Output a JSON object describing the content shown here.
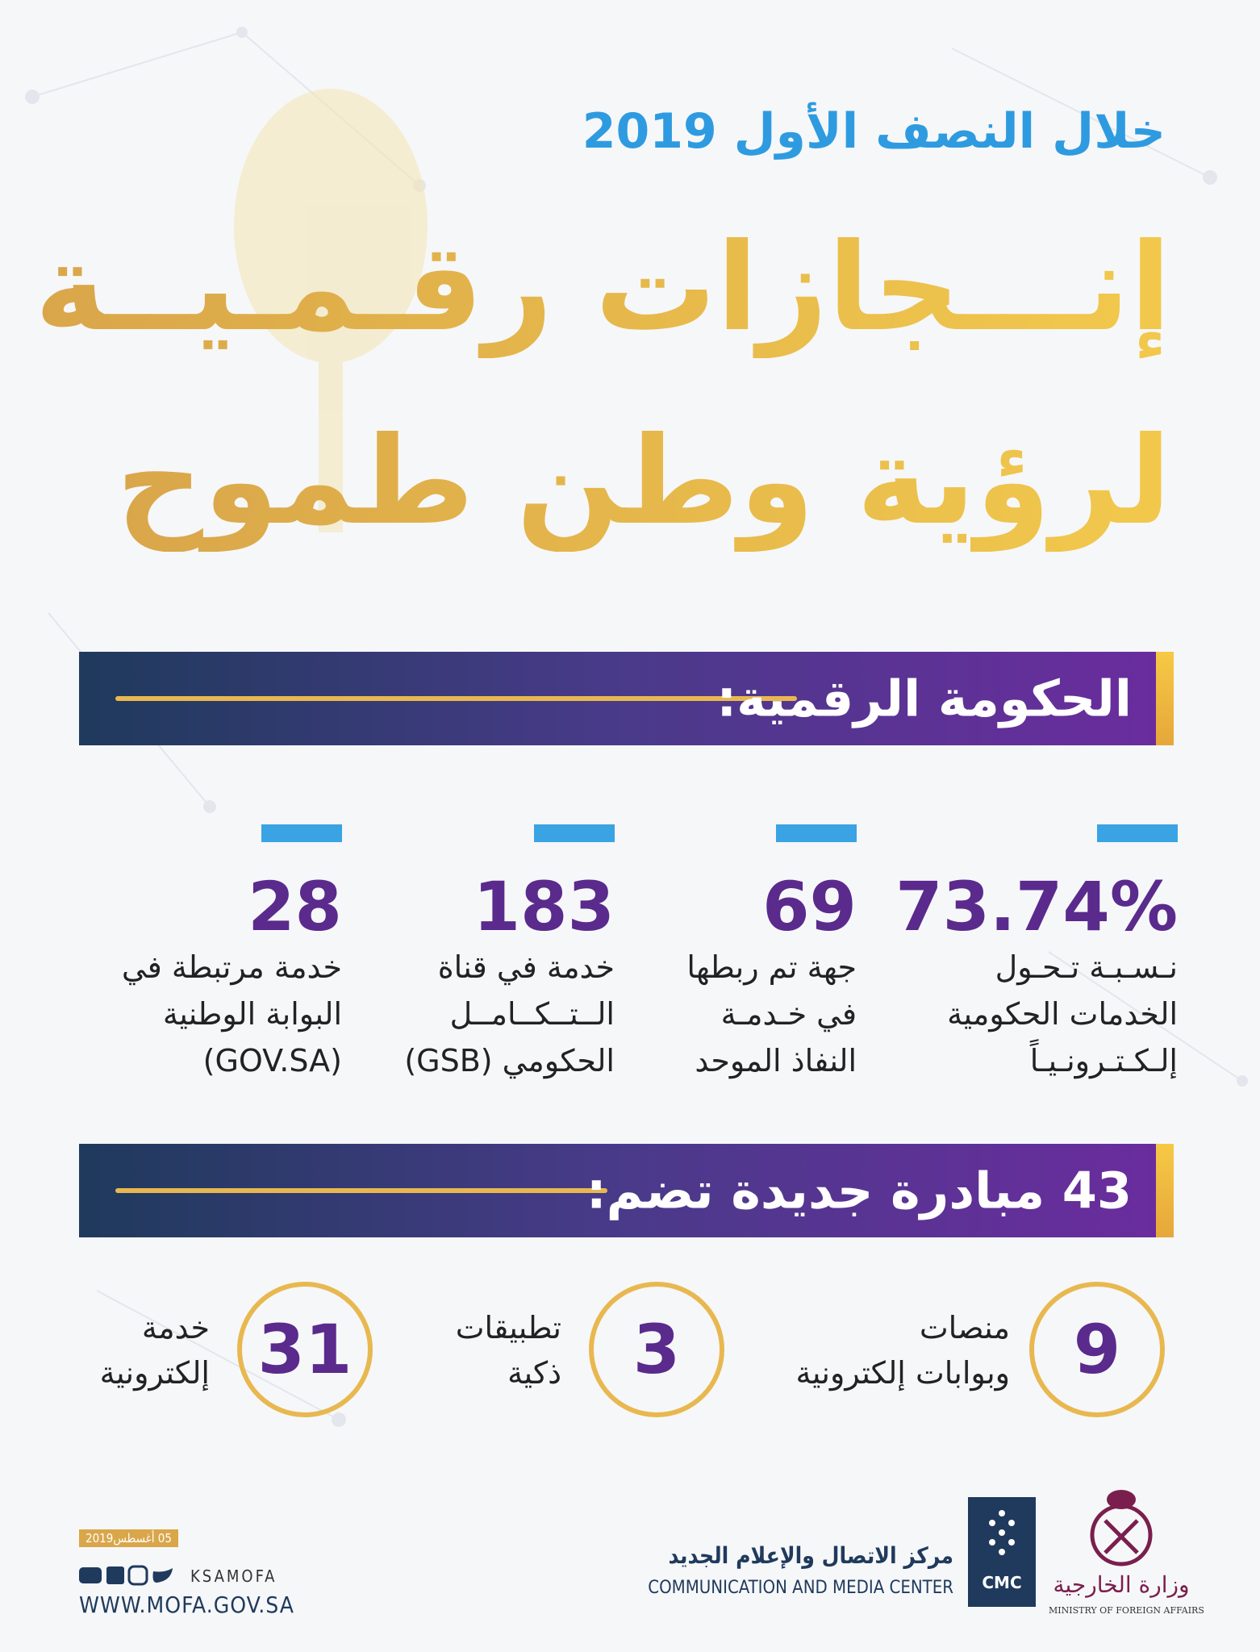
{
  "header": {
    "subtitle": "خلال النصف الأول 2019",
    "title_line1": "إنـــجازات رقـمـيــة",
    "title_line2": "لرؤية وطن طموح"
  },
  "sections": [
    {
      "heading": "الحكومة الرقمية:",
      "stats": [
        {
          "value": "73.74%",
          "lines": [
            "نـسـبـة تـحـول",
            "الخدمات الحكومية",
            "إلـكـتـرونـيـاً"
          ]
        },
        {
          "value": "69",
          "lines": [
            "جهة تم ربطها",
            "في خـدمـة",
            "النفاذ الموحد"
          ]
        },
        {
          "value": "183",
          "lines": [
            "خدمة في قناة",
            "الــتــكــامــل",
            "الحكومي (GSB)"
          ]
        },
        {
          "value": "28",
          "lines": [
            "خدمة مرتبطة في",
            "البوابة الوطنية",
            "(GOV.SA)"
          ]
        }
      ]
    },
    {
      "heading": "43 مبادرة جديدة تضم:",
      "items": [
        {
          "value": "9",
          "lines": [
            "منصات",
            "وبوابات إلكترونية"
          ]
        },
        {
          "value": "3",
          "lines": [
            "تطبيقات",
            "ذكية"
          ]
        },
        {
          "value": "31",
          "lines": [
            "خدمة",
            "إلكترونية"
          ]
        }
      ]
    }
  ],
  "footer": {
    "date": "05 أغسطس2019",
    "handle": "KSAMOFA",
    "website": "WWW.MOFA.GOV.SA",
    "cmc_ar": "مركز الاتصال والإعلام الجديد",
    "cmc_en": "COMMUNICATION AND MEDIA CENTER",
    "cmc_logo": "CMC",
    "ministry_ar": "وزارة الخارجية",
    "ministry_en": "MINISTRY OF FOREIGN AFFAIRS"
  }
}
